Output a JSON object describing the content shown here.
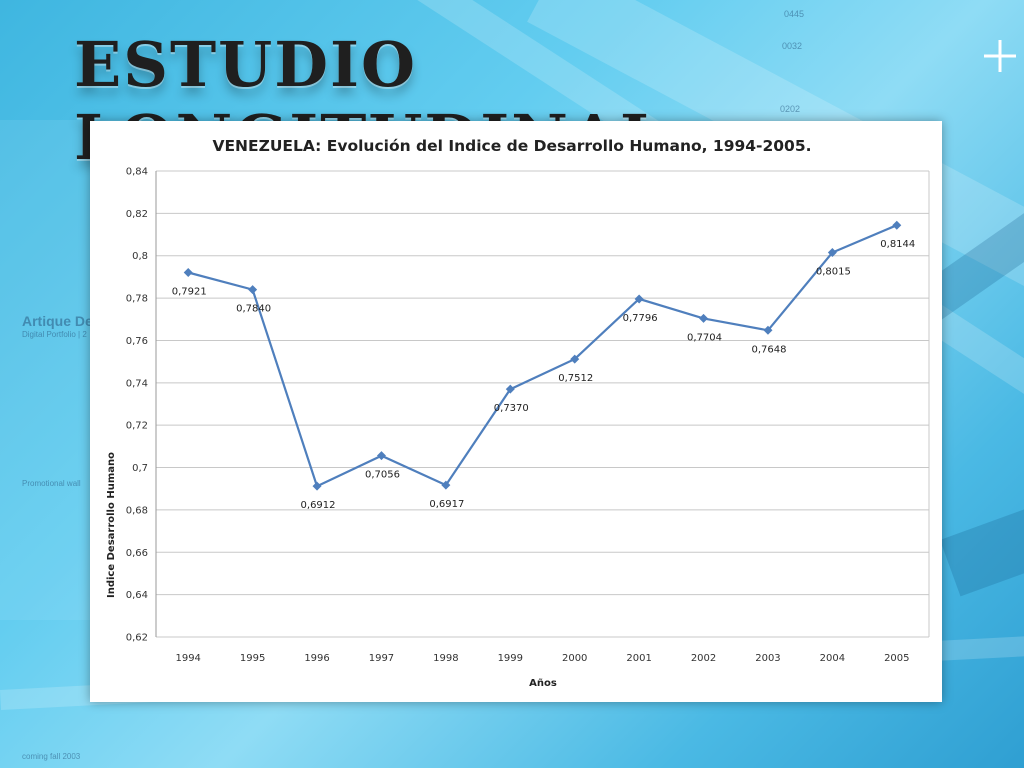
{
  "slide": {
    "title": "ESTUDIO LONGITUDINAL",
    "background_texts": {
      "numbers": [
        "0445",
        "0032",
        "0202"
      ],
      "brand": "Artique De",
      "brand_sub": "Digital Portfolio | 2",
      "promo": "Promotional wall",
      "footer": "coming fall 2003"
    }
  },
  "colors": {
    "series": "#4f7fbd",
    "grid": "#c8c8c8",
    "panel": "#ffffff"
  },
  "chart_data": {
    "type": "line",
    "title": "VENEZUELA: Evolución del Indice de Desarrollo Humano, 1994-2005.",
    "xlabel": "Años",
    "ylabel": "Indice Desarrollo Humano",
    "ylim": [
      0.62,
      0.84
    ],
    "yticks": [
      "0,62",
      "0,64",
      "0,66",
      "0,68",
      "0,7",
      "0,72",
      "0,74",
      "0,76",
      "0,78",
      "0,8",
      "0,82",
      "0,84"
    ],
    "categories": [
      "1994",
      "1995",
      "1996",
      "1997",
      "1998",
      "1999",
      "2000",
      "2001",
      "2002",
      "2003",
      "2004",
      "2005"
    ],
    "series": [
      {
        "values": [
          0.7921,
          0.784,
          0.6912,
          0.7056,
          0.6917,
          0.737,
          0.7512,
          0.7796,
          0.7704,
          0.7648,
          0.8015,
          0.8144
        ],
        "labels": [
          "0,7921",
          "0,7840",
          "0,6912",
          "0,7056",
          "0,6917",
          "0,7370",
          "0,7512",
          "0,7796",
          "0,7704",
          "0,7648",
          "0,8015",
          "0,8144"
        ]
      }
    ],
    "grid": true,
    "legend": "none"
  }
}
